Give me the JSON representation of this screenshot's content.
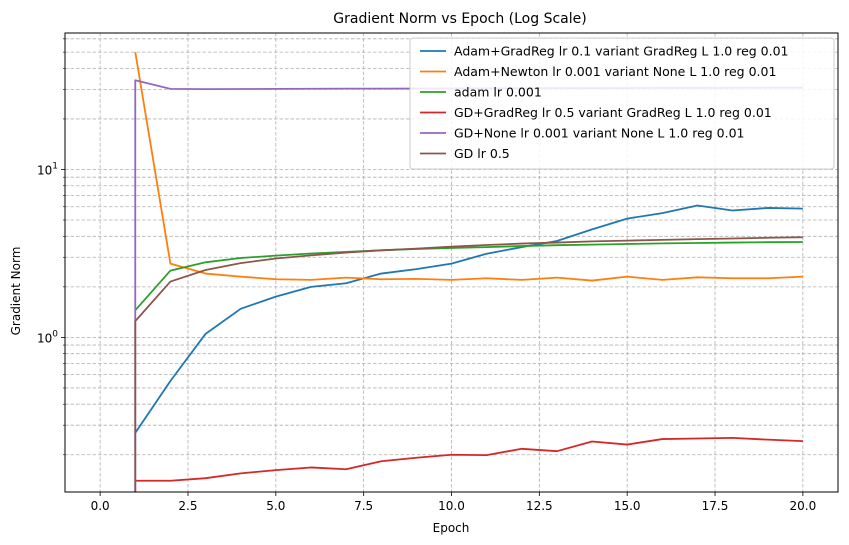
{
  "chart_data": {
    "type": "line",
    "title": "Gradient Norm vs Epoch (Log Scale)",
    "xlabel": "Epoch",
    "ylabel": "Gradient Norm",
    "xlim": [
      -1.0,
      21.0
    ],
    "ylim": [
      0.12,
      65
    ],
    "yscale": "log",
    "grid": true,
    "legend_position": "top-right",
    "x_ticks": [
      {
        "value": 0.0,
        "label": "0.0"
      },
      {
        "value": 2.5,
        "label": "2.5"
      },
      {
        "value": 5.0,
        "label": "5.0"
      },
      {
        "value": 7.5,
        "label": "7.5"
      },
      {
        "value": 10.0,
        "label": "10.0"
      },
      {
        "value": 12.5,
        "label": "12.5"
      },
      {
        "value": 15.0,
        "label": "15.0"
      },
      {
        "value": 17.5,
        "label": "17.5"
      },
      {
        "value": 20.0,
        "label": "20.0"
      }
    ],
    "y_major_ticks": [
      {
        "value": 1,
        "base": "10",
        "exp": "0"
      },
      {
        "value": 10,
        "base": "10",
        "exp": "1"
      }
    ],
    "y_minor_ticks": [
      0.2,
      0.3,
      0.4,
      0.5,
      0.6,
      0.7,
      0.8,
      0.9,
      2,
      3,
      4,
      5,
      6,
      7,
      8,
      9,
      20,
      30,
      40,
      50,
      60
    ],
    "series": [
      {
        "name": "Adam+GradReg lr 0.1 variant GradReg L 1.0 reg 0.01",
        "color": "#1f77b4",
        "x": [
          1,
          2,
          3,
          4,
          5,
          6,
          7,
          8,
          9,
          10,
          11,
          12,
          13,
          14,
          15,
          16,
          17,
          18,
          19,
          20
        ],
        "y": [
          0.27,
          0.55,
          1.05,
          1.48,
          1.75,
          2.0,
          2.1,
          2.4,
          2.55,
          2.75,
          3.15,
          3.45,
          3.75,
          4.4,
          5.1,
          5.5,
          6.1,
          5.7,
          5.9,
          5.85
        ]
      },
      {
        "name": "Adam+Newton lr 0.001 variant None L 1.0 reg 0.01",
        "color": "#ff7f0e",
        "x": [
          1,
          2,
          3,
          4,
          5,
          6,
          7,
          8,
          9,
          10,
          11,
          12,
          13,
          14,
          15,
          16,
          17,
          18,
          19,
          20
        ],
        "y": [
          50,
          2.75,
          2.4,
          2.3,
          2.22,
          2.2,
          2.27,
          2.22,
          2.23,
          2.2,
          2.25,
          2.2,
          2.27,
          2.18,
          2.3,
          2.2,
          2.28,
          2.25,
          2.25,
          2.3
        ]
      },
      {
        "name": "adam lr 0.001",
        "color": "#2ca02c",
        "x": [
          1,
          2,
          3,
          4,
          5,
          6,
          7,
          8,
          9,
          10,
          11,
          12,
          13,
          14,
          15,
          16,
          17,
          18,
          19,
          20
        ],
        "y": [
          1.45,
          2.5,
          2.8,
          2.97,
          3.07,
          3.16,
          3.23,
          3.3,
          3.36,
          3.41,
          3.45,
          3.5,
          3.54,
          3.57,
          3.6,
          3.63,
          3.65,
          3.67,
          3.69,
          3.7
        ]
      },
      {
        "name": "GD+GradReg lr 0.5 variant GradReg L 1.0 reg 0.01",
        "color": "#d62728",
        "x": [
          1,
          2,
          3,
          4,
          5,
          6,
          7,
          8,
          9,
          10,
          11,
          12,
          13,
          14,
          15,
          16,
          17,
          18,
          19,
          20
        ],
        "y": [
          0.14,
          0.14,
          0.145,
          0.155,
          0.162,
          0.168,
          0.164,
          0.183,
          0.192,
          0.2,
          0.199,
          0.217,
          0.21,
          0.24,
          0.23,
          0.248,
          0.25,
          0.252,
          0.246,
          0.241
        ]
      },
      {
        "name": "GD+None lr 0.001 variant None L 1.0 reg 0.01",
        "color": "#9467bd",
        "x": [
          1,
          1,
          2,
          3,
          4,
          5,
          6,
          7,
          8,
          9,
          10,
          11,
          12,
          13,
          14,
          15,
          16,
          17,
          18,
          19,
          20
        ],
        "y": [
          0.1,
          34,
          30.2,
          30.1,
          30.15,
          30.2,
          30.25,
          30.3,
          30.3,
          30.35,
          30.4,
          30.4,
          30.45,
          30.5,
          30.5,
          30.55,
          30.6,
          30.6,
          30.65,
          30.7,
          30.7
        ]
      },
      {
        "name": "GD lr 0.5",
        "color": "#8c564b",
        "x": [
          1,
          1,
          2,
          3,
          4,
          5,
          6,
          7,
          8,
          9,
          10,
          11,
          12,
          13,
          14,
          15,
          16,
          17,
          18,
          19,
          20
        ],
        "y": [
          0.1,
          1.25,
          2.15,
          2.52,
          2.77,
          2.95,
          3.08,
          3.2,
          3.3,
          3.38,
          3.47,
          3.55,
          3.62,
          3.67,
          3.73,
          3.77,
          3.81,
          3.85,
          3.88,
          3.92,
          3.95
        ]
      }
    ]
  }
}
